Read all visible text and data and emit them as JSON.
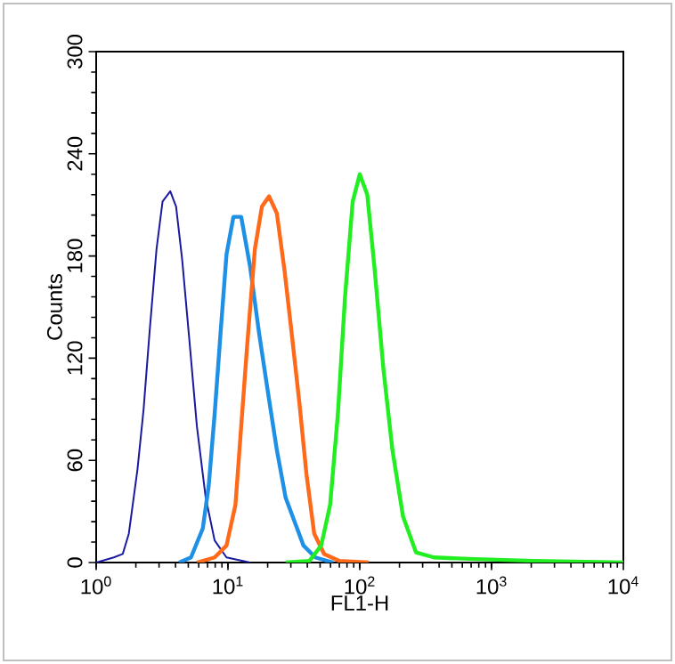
{
  "chart_data": {
    "type": "line",
    "xlabel": "FL1-H",
    "ylabel": "Counts",
    "log": "x",
    "grid": false,
    "marker": "none",
    "xlim": [
      1,
      10000
    ],
    "ylim": [
      0,
      300
    ],
    "xticks": [
      {
        "value": 1,
        "label": "10$^{0}$"
      },
      {
        "value": 10,
        "label": "10$^{1}$"
      },
      {
        "value": 100,
        "label": "10$^{2}$"
      },
      {
        "value": 1000,
        "label": "10$^{3}$"
      },
      {
        "value": 10000,
        "label": "10$^{4}$"
      }
    ],
    "yticks": [
      0,
      60,
      120,
      180,
      240,
      300
    ],
    "series": [
      {
        "color": "#1a1aa0",
        "x": [
          1.0,
          1.36,
          1.59,
          1.77,
          2.06,
          2.29,
          2.54,
          2.87,
          3.19,
          3.65,
          4.04,
          4.49,
          5.13,
          5.81,
          6.78,
          7.92,
          9.75,
          14.7
        ],
        "values": [
          0,
          3,
          5,
          17,
          55,
          90,
          135,
          184,
          212,
          218,
          209,
          178,
          128,
          80,
          38,
          13,
          3,
          0
        ]
      },
      {
        "color": "#1e90e6",
        "x": [
          4.26,
          5.24,
          6.44,
          7.14,
          7.92,
          8.79,
          9.75,
          11.0,
          12.6,
          14.7,
          17.2,
          20.1,
          23.5,
          27.4,
          32.0,
          37.4,
          46.0,
          62.8
        ],
        "values": [
          0,
          3,
          20,
          45,
          87,
          135,
          181,
          203,
          203,
          174,
          135,
          100,
          66,
          38,
          24,
          10,
          3,
          0
        ]
      },
      {
        "color": "#ff6a1a",
        "x": [
          5.81,
          7.92,
          9.75,
          11.4,
          12.6,
          14.0,
          16.0,
          18.1,
          20.5,
          23.5,
          26.9,
          30.4,
          34.8,
          39.4,
          45.1,
          53.7,
          69.6,
          117
        ],
        "values": [
          0,
          3,
          10,
          34,
          80,
          128,
          184,
          209,
          215,
          205,
          171,
          135,
          94,
          52,
          17,
          5,
          1,
          0
        ]
      },
      {
        "color": "#22ee22",
        "x": [
          27.4,
          41.5,
          51.0,
          59.6,
          68.2,
          77.3,
          88.4,
          100,
          114,
          129,
          151,
          177,
          213,
          267,
          365,
          752,
          2118,
          10000
        ],
        "values": [
          0,
          1,
          10,
          34,
          87,
          156,
          212,
          228,
          216,
          174,
          114,
          66,
          27,
          6,
          3,
          2,
          1,
          0
        ]
      }
    ]
  }
}
